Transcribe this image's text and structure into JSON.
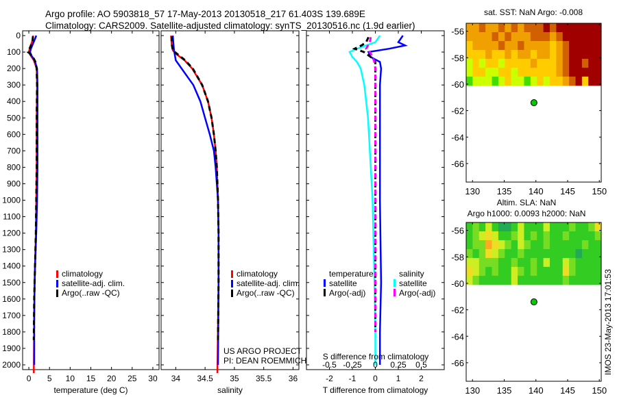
{
  "title_line1": "Argo profile: AO 5903818_57 17-May-2013 20130518_217 61.403S 139.689E",
  "title_line2": "Climatology: CARS2009. Satellite-adjusted climatology: synTS_20130516.nc (1.9d earlier)",
  "side_stamp": "IMOS 23-May-2013 17:01:53",
  "colors": {
    "climatology": "#ff0000",
    "satellite": "#0000ff",
    "argo": "#000000",
    "sat_salinity": "#00ffff",
    "argo_salinity": "#ff00ff",
    "marker": "#00cc00"
  },
  "chart_data": [
    {
      "type": "line",
      "id": "temperature",
      "xlabel": "temperature (deg C)",
      "ylabel": "",
      "xlim": [
        -1.5,
        31.5
      ],
      "ylim": [
        2050,
        0
      ],
      "xticks": [
        "0",
        "5",
        "10",
        "15",
        "20",
        "25",
        "30"
      ],
      "xtick_values": [
        0,
        5,
        10,
        15,
        20,
        25,
        30
      ],
      "yticks": [
        "0",
        "100",
        "200",
        "300",
        "400",
        "500",
        "600",
        "700",
        "800",
        "900",
        "1000",
        "1100",
        "1200",
        "1300",
        "1400",
        "1500",
        "1600",
        "1700",
        "1800",
        "1900",
        "2000"
      ],
      "legend": [
        "climatology",
        "satellite-adj. clim.",
        "Argo(..raw -QC)"
      ],
      "series": [
        {
          "name": "climatology",
          "color": "#ff0000",
          "depth": [
            0,
            20,
            50,
            80,
            100,
            120,
            150,
            200,
            300,
            500,
            800,
            1000,
            1200,
            1400,
            1500,
            1700,
            2050
          ],
          "values": [
            1.0,
            1.0,
            0.6,
            0.2,
            0.0,
            0.4,
            1.2,
            1.9,
            2.0,
            1.9,
            1.9,
            1.8,
            1.7,
            1.5,
            1.4,
            1.3,
            1.2
          ]
        },
        {
          "name": "satellite-adj. clim.",
          "color": "#0000ff",
          "depth": [
            0,
            20,
            50,
            80,
            100,
            120,
            150,
            200,
            300,
            500,
            800,
            1000,
            1200,
            1400,
            1500,
            1700,
            2000
          ],
          "values": [
            1.8,
            1.5,
            1.0,
            0.5,
            0.3,
            0.6,
            1.4,
            2.0,
            2.1,
            2.1,
            2.1,
            2.0,
            1.8,
            1.5,
            1.4,
            1.3,
            1.3
          ]
        },
        {
          "name": "Argo(..raw -QC)",
          "color": "#000000",
          "dash": true,
          "depth": [
            5,
            30,
            60,
            90,
            100,
            110,
            130,
            160,
            200,
            300,
            500,
            800,
            1000,
            1200,
            1400,
            1600,
            1850
          ],
          "values": [
            1.0,
            0.9,
            0.5,
            0.0,
            -0.2,
            0.3,
            1.0,
            1.6,
            1.9,
            2.0,
            1.9,
            1.9,
            1.8,
            1.7,
            1.5,
            1.3,
            1.2
          ]
        }
      ]
    },
    {
      "type": "line",
      "id": "salinity",
      "xlabel": "salinity",
      "xlim": [
        33.75,
        36.1
      ],
      "ylim": [
        2050,
        0
      ],
      "xticks": [
        "34",
        "34.5",
        "35",
        "35.5",
        "36"
      ],
      "xtick_values": [
        34,
        34.5,
        35,
        35.5,
        36
      ],
      "legend": [
        "climatology",
        "satellite-adj. clim.",
        "Argo(..raw -QC)"
      ],
      "annotation": [
        "US ARGO PROJECT",
        "PI: DEAN ROEMMICH"
      ],
      "series": [
        {
          "name": "climatology",
          "color": "#ff0000",
          "depth": [
            0,
            50,
            90,
            110,
            150,
            200,
            300,
            400,
            500,
            600,
            700,
            800,
            1000,
            1200,
            1500,
            2050
          ],
          "values": [
            33.92,
            33.93,
            33.95,
            34.0,
            34.15,
            34.28,
            34.45,
            34.55,
            34.61,
            34.65,
            34.68,
            34.7,
            34.72,
            34.73,
            34.73,
            34.71
          ]
        },
        {
          "name": "satellite-adj. clim.",
          "color": "#0000ff",
          "depth": [
            0,
            50,
            90,
            110,
            150,
            200,
            300,
            400,
            500,
            600,
            700,
            800,
            1000,
            1200,
            1500,
            2000
          ],
          "values": [
            33.95,
            33.96,
            33.97,
            33.98,
            34.0,
            34.1,
            34.3,
            34.42,
            34.5,
            34.58,
            34.65,
            34.68,
            34.72,
            34.73,
            34.73,
            34.72
          ]
        },
        {
          "name": "Argo(..raw -QC)",
          "color": "#000000",
          "dash": true,
          "depth": [
            5,
            50,
            90,
            110,
            150,
            200,
            300,
            400,
            500,
            600,
            700,
            800,
            1000,
            1200,
            1500,
            1850
          ],
          "values": [
            33.93,
            33.93,
            33.95,
            34.02,
            34.16,
            34.29,
            34.45,
            34.55,
            34.61,
            34.65,
            34.68,
            34.7,
            34.72,
            34.73,
            34.73,
            34.72
          ]
        }
      ]
    },
    {
      "type": "line",
      "id": "difference",
      "xlabel": "T difference from climatology",
      "xlabel2": "S difference from climatology",
      "xlim": [
        -3,
        3
      ],
      "ylim": [
        2050,
        0
      ],
      "xticks": [
        "-2",
        "-1",
        "0",
        "1",
        "2"
      ],
      "xtick_values": [
        -2,
        -1,
        0,
        1,
        2
      ],
      "xticks2": [
        "-0.5",
        "-0.25",
        "0",
        "0.25",
        "0.5"
      ],
      "xtick2_values": [
        -0.5,
        -0.25,
        0,
        0.25,
        0.5
      ],
      "legend_temperature": {
        "title": "temperature",
        "items": [
          "satellite",
          "Argo(-adj)"
        ]
      },
      "legend_salinity": {
        "title": "salinity",
        "items": [
          "satellite",
          "Argo(-adj)"
        ]
      },
      "series": [
        {
          "name": "T satellite",
          "color": "#0000ff",
          "units": "T",
          "depth": [
            0,
            40,
            60,
            80,
            100,
            130,
            160,
            200,
            300,
            500,
            1000,
            1500,
            1800,
            2000
          ],
          "values": [
            1.2,
            1.0,
            1.3,
            0.6,
            -0.3,
            -0.2,
            0.2,
            0.25,
            0.2,
            0.2,
            0.2,
            0.25,
            0.2,
            0.2
          ]
        },
        {
          "name": "S satellite",
          "color": "#00ffff",
          "units": "S",
          "depth": [
            0,
            40,
            60,
            80,
            100,
            130,
            160,
            200,
            300,
            500,
            1000,
            1500,
            1800,
            2000
          ],
          "values": [
            0.05,
            0.0,
            -0.1,
            -0.2,
            -0.28,
            -0.25,
            -0.2,
            -0.16,
            -0.12,
            -0.08,
            -0.03,
            -0.01,
            0.0,
            0.0
          ]
        },
        {
          "name": "T Argo(-adj)",
          "color": "#000000",
          "units": "T",
          "dash": true,
          "depth": [
            10,
            40,
            60,
            80,
            100,
            130,
            160,
            200,
            300,
            500,
            1000,
            1500,
            1800
          ],
          "values": [
            -0.3,
            -0.4,
            -0.6,
            -0.9,
            -0.5,
            -0.2,
            0,
            0,
            0,
            0,
            0,
            0,
            0
          ]
        },
        {
          "name": "S Argo(-adj)",
          "color": "#ff00ff",
          "units": "S",
          "dash": true,
          "depth": [
            10,
            40,
            60,
            80,
            100,
            130,
            160,
            200,
            300,
            500,
            1000,
            1500,
            1800
          ],
          "values": [
            -0.05,
            -0.06,
            -0.08,
            -0.1,
            -0.06,
            -0.03,
            -0.01,
            0,
            0,
            0,
            0,
            0,
            0
          ]
        }
      ]
    },
    {
      "type": "heatmap",
      "id": "sst_map",
      "title": [
        "sat. SST: NaN Argo: -0.008"
      ],
      "xlim": [
        129,
        150.3
      ],
      "ylim": [
        -67.4,
        -55.4
      ],
      "xticks": [
        "130",
        "135",
        "140",
        "145",
        "150"
      ],
      "xtick_values": [
        130,
        135,
        140,
        145,
        150
      ],
      "yticks": [
        "-56",
        "-58",
        "-60",
        "-62",
        "-64",
        "-66"
      ],
      "ytick_values": [
        -56,
        -58,
        -60,
        -62,
        -64,
        -66
      ],
      "data_lat": [
        -55.4,
        -60.1
      ],
      "data_lon": [
        129,
        150.3
      ],
      "colormap": [
        "#44dd00",
        "#ccff00",
        "#ffcc00",
        "#f0a000",
        "#d06000",
        "#a00000"
      ],
      "grid": [
        [
          3,
          3,
          4,
          3,
          3,
          4,
          3,
          4,
          3,
          4,
          4,
          4,
          5,
          4,
          5,
          5,
          5,
          5,
          5,
          5,
          5
        ],
        [
          3,
          3,
          3,
          3,
          4,
          3,
          4,
          3,
          3,
          3,
          4,
          4,
          4,
          3,
          4,
          5,
          5,
          5,
          5,
          5,
          5
        ],
        [
          2,
          3,
          3,
          3,
          3,
          4,
          3,
          3,
          4,
          3,
          3,
          3,
          3,
          2,
          3,
          4,
          5,
          5,
          5,
          5,
          5
        ],
        [
          2,
          2,
          2,
          3,
          2,
          2,
          3,
          2,
          3,
          3,
          2,
          3,
          3,
          2,
          3,
          4,
          5,
          5,
          5,
          5,
          5
        ],
        [
          1,
          2,
          1,
          2,
          2,
          1,
          2,
          2,
          2,
          2,
          3,
          2,
          2,
          2,
          3,
          4,
          5,
          5,
          4,
          5,
          5
        ],
        [
          1,
          2,
          2,
          1,
          1,
          2,
          2,
          1,
          2,
          2,
          2,
          2,
          2,
          2,
          3,
          4,
          5,
          5,
          5,
          5,
          5
        ],
        [
          0,
          1,
          1,
          1,
          0,
          1,
          2,
          1,
          1,
          0,
          1,
          2,
          1,
          2,
          2,
          3,
          4,
          5,
          2,
          5,
          5
        ]
      ],
      "marker": {
        "lon": 139.689,
        "lat": -61.403
      }
    },
    {
      "type": "heatmap",
      "id": "sla_map",
      "title": [
        "Altim. SLA: NaN",
        "Argo h1000: 0.0093 h2000: NaN"
      ],
      "xlim": [
        129,
        150.3
      ],
      "ylim": [
        -67.4,
        -55.4
      ],
      "xticks": [
        "130",
        "135",
        "140",
        "145",
        "150"
      ],
      "xtick_values": [
        130,
        135,
        140,
        145,
        150
      ],
      "yticks": [
        "-56",
        "-58",
        "-60",
        "-62",
        "-64",
        "-66"
      ],
      "ytick_values": [
        -56,
        -58,
        -60,
        -62,
        -64,
        -66
      ],
      "data_lat": [
        -55.4,
        -60.1
      ],
      "data_lon": [
        129,
        150.3
      ],
      "colormap": [
        "#22aa55",
        "#33cc22",
        "#77dd22",
        "#ccee22",
        "#eedd22",
        "#ffaa22"
      ],
      "grid": [
        [
          1,
          2,
          1,
          3,
          1,
          0,
          0,
          1,
          3,
          1,
          1,
          1,
          3,
          1,
          1,
          1,
          2,
          1,
          1,
          2,
          4
        ],
        [
          1,
          2,
          3,
          4,
          3,
          1,
          1,
          2,
          3,
          1,
          2,
          1,
          2,
          1,
          1,
          2,
          1,
          1,
          1,
          1,
          2
        ],
        [
          1,
          2,
          2,
          5,
          4,
          3,
          2,
          1,
          3,
          2,
          1,
          1,
          2,
          1,
          1,
          1,
          1,
          1,
          2,
          1,
          1
        ],
        [
          2,
          1,
          2,
          4,
          3,
          2,
          1,
          1,
          2,
          1,
          1,
          1,
          1,
          1,
          1,
          1,
          1,
          0,
          1,
          1,
          1
        ],
        [
          3,
          3,
          2,
          2,
          2,
          1,
          1,
          2,
          1,
          1,
          2,
          1,
          3,
          1,
          1,
          3,
          2,
          1,
          1,
          1,
          1
        ],
        [
          4,
          3,
          2,
          1,
          2,
          1,
          1,
          3,
          2,
          1,
          2,
          1,
          1,
          1,
          1,
          4,
          2,
          1,
          1,
          1,
          1
        ],
        [
          3,
          2,
          1,
          1,
          1,
          1,
          1,
          3,
          1,
          1,
          1,
          1,
          1,
          1,
          1,
          2,
          1,
          1,
          1,
          1,
          1
        ]
      ],
      "marker": {
        "lon": 139.689,
        "lat": -61.403
      }
    }
  ]
}
